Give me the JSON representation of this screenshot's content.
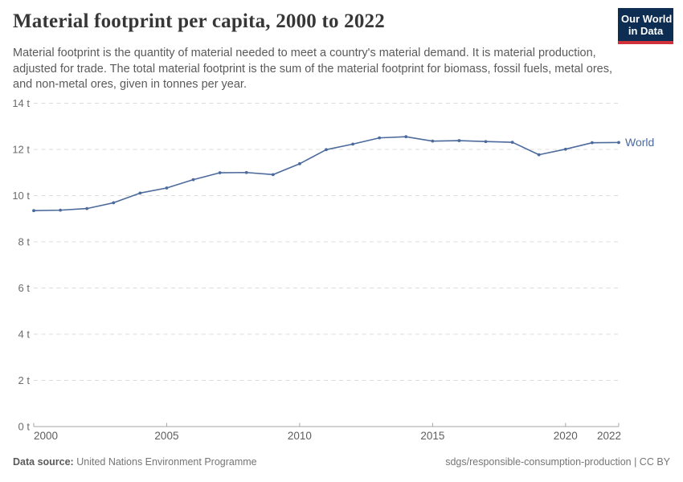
{
  "header": {
    "title": "Material footprint per capita, 2000 to 2022",
    "subtitle": "Material footprint is the quantity of material needed to meet a country's material demand. It is material production, adjusted for trade. The total material footprint is the sum of the material footprint for biomass, fossil fuels, metal ores, and non-metal ores, given in tonnes per year."
  },
  "logo": {
    "line1": "Our World",
    "line2": "in Data",
    "bg_color": "#0d2d52",
    "stripe_color": "#d13239"
  },
  "chart_data": {
    "type": "line",
    "title": "Material footprint per capita, 2000 to 2022",
    "xlabel": "",
    "ylabel": "",
    "xlim": [
      2000,
      2022
    ],
    "ylim": [
      0,
      14
    ],
    "x": [
      2000,
      2001,
      2002,
      2003,
      2004,
      2005,
      2006,
      2007,
      2008,
      2009,
      2010,
      2011,
      2012,
      2013,
      2014,
      2015,
      2016,
      2017,
      2018,
      2019,
      2020,
      2021,
      2022
    ],
    "series": [
      {
        "name": "World",
        "color": "#4c6a9c",
        "values": [
          9.35,
          9.37,
          9.44,
          9.69,
          10.11,
          10.33,
          10.69,
          10.99,
          11.0,
          10.91,
          11.38,
          11.99,
          12.23,
          12.5,
          12.55,
          12.36,
          12.38,
          12.34,
          12.31,
          11.77,
          12.01,
          12.29,
          12.3
        ]
      }
    ],
    "xticks": [
      2000,
      2005,
      2010,
      2015,
      2020,
      2022
    ],
    "yticks": [
      0,
      2,
      4,
      6,
      8,
      10,
      12,
      14
    ],
    "ytick_suffix": " t",
    "grid": "horizontal dashed",
    "legend": "end-of-line label",
    "grid_color": "#dcdcdc",
    "axis_color": "#a6a6a6"
  },
  "footer": {
    "datasource_label": "Data source:",
    "datasource_value": "United Nations Environment Programme",
    "note_right": "sdgs/responsible-consumption-production | CC BY"
  }
}
